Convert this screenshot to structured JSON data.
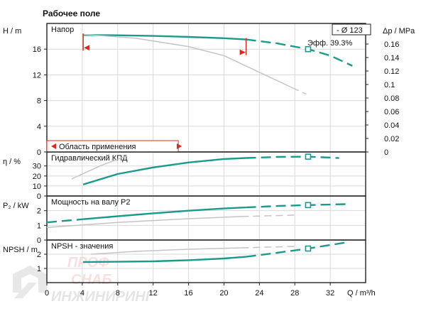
{
  "title": "Рабочее поле",
  "colors": {
    "teal": "#1a9a8a",
    "gray": "#c4c4c4",
    "red": "#e0281e",
    "axis": "#222222",
    "grid": "#d9d9d9"
  },
  "chart_data": [
    {
      "type": "line",
      "panel": "head",
      "title": "Напор",
      "ylabel": "H / m",
      "y2label": "Δp / MPa",
      "xlim": [
        0,
        36
      ],
      "ylim": [
        0,
        20
      ],
      "yticks": [
        "0",
        "4",
        "8",
        "12",
        "16"
      ],
      "y2ticks": [
        "0",
        "0.02",
        "0.04",
        "0.06",
        "0.08",
        "0.1",
        "0.12",
        "0.14",
        "0.16"
      ],
      "legend_box": "- Ø 123",
      "efficiency_label": "Эфф. 39.3%",
      "range_label": "Область применения",
      "range_x": [
        4.1,
        22.5
      ],
      "series": [
        {
          "style": "solid-teal",
          "x": [
            4.1,
            8,
            12,
            16,
            20,
            22.5
          ],
          "y": [
            18.2,
            18.15,
            18.05,
            17.9,
            17.7,
            17.5
          ]
        },
        {
          "style": "dashed-teal",
          "x": [
            22.5,
            26,
            29.5,
            32,
            34.5
          ],
          "y": [
            17.5,
            16.9,
            16.0,
            15.0,
            13.4
          ]
        },
        {
          "style": "gray",
          "x": [
            4.1,
            10,
            16,
            20,
            24,
            27.7
          ],
          "y": [
            18.3,
            17.7,
            16.4,
            15.0,
            12.4,
            10.0
          ]
        },
        {
          "style": "gray-dashed",
          "x": [
            27.7,
            29.3
          ],
          "y": [
            10.0,
            9.0
          ]
        }
      ],
      "operating_point": {
        "x": 29.5,
        "y": 16.0
      }
    },
    {
      "type": "line",
      "panel": "efficiency",
      "title": "Гидравлический КПД",
      "ylabel": "η / %",
      "xlim": [
        0,
        36
      ],
      "ylim": [
        0,
        44
      ],
      "yticks": [
        "0",
        "10",
        "20",
        "30"
      ],
      "series": [
        {
          "style": "solid-teal",
          "x": [
            4.1,
            8,
            12,
            16,
            20,
            22.5
          ],
          "y": [
            11.5,
            22.0,
            28.5,
            33.5,
            37.0,
            38.0
          ]
        },
        {
          "style": "dashed-teal",
          "x": [
            22.5,
            26,
            29.5,
            33
          ],
          "y": [
            38.0,
            39.0,
            39.3,
            38.0
          ]
        },
        {
          "style": "gray",
          "x": [
            2.8,
            6,
            9
          ],
          "y": [
            17,
            30,
            40
          ]
        }
      ],
      "operating_point": {
        "x": 29.5,
        "y": 39.3
      }
    },
    {
      "type": "line",
      "panel": "power",
      "title": "Мощность на валу Р2",
      "ylabel": "P₂ / kW",
      "xlim": [
        0,
        36
      ],
      "ylim": [
        0,
        3
      ],
      "yticks": [
        "0",
        "1",
        "2"
      ],
      "series": [
        {
          "style": "dashed-teal",
          "x": [
            0,
            4.1
          ],
          "y": [
            1.2,
            1.42
          ]
        },
        {
          "style": "solid-teal",
          "x": [
            4.1,
            8,
            12,
            16,
            20,
            22.5
          ],
          "y": [
            1.42,
            1.62,
            1.82,
            2.0,
            2.15,
            2.22
          ]
        },
        {
          "style": "dashed-teal",
          "x": [
            22.5,
            26,
            29.5,
            34
          ],
          "y": [
            2.22,
            2.32,
            2.38,
            2.45
          ]
        },
        {
          "style": "gray",
          "x": [
            0,
            8,
            16,
            22
          ],
          "y": [
            0.85,
            1.2,
            1.45,
            1.6
          ]
        },
        {
          "style": "gray-dashed",
          "x": [
            22,
            28
          ],
          "y": [
            1.6,
            1.7
          ]
        }
      ],
      "operating_point": {
        "x": 29.5,
        "y": 2.38
      }
    },
    {
      "type": "line",
      "panel": "npsh",
      "title": "NPSH - значения",
      "ylabel": "NPSH / m",
      "xlabel": "Q / m³/h",
      "xlim": [
        0,
        36
      ],
      "ylim": [
        0,
        3
      ],
      "xticks": [
        "0",
        "4",
        "8",
        "12",
        "16",
        "20",
        "24",
        "28",
        "32"
      ],
      "yticks": [
        "1",
        "2"
      ],
      "series": [
        {
          "style": "solid-teal",
          "x": [
            4.1,
            8,
            12,
            16,
            20,
            22.5
          ],
          "y": [
            1.45,
            1.47,
            1.5,
            1.58,
            1.7,
            1.82
          ]
        },
        {
          "style": "dashed-teal",
          "x": [
            22.5,
            26,
            29.5,
            34
          ],
          "y": [
            1.82,
            2.1,
            2.4,
            2.85
          ]
        },
        {
          "style": "gray",
          "x": [
            5,
            10,
            16,
            22
          ],
          "y": [
            2.0,
            2.2,
            2.35,
            2.45
          ]
        },
        {
          "style": "gray-dashed",
          "x": [
            22,
            28
          ],
          "y": [
            2.45,
            2.55
          ]
        }
      ],
      "operating_point": {
        "x": 29.5,
        "y": 2.4
      }
    }
  ],
  "watermark": {
    "line1": "ПРОФ",
    "line2": "СНАБ",
    "line3": "ИНЖИНИРИНГ"
  }
}
